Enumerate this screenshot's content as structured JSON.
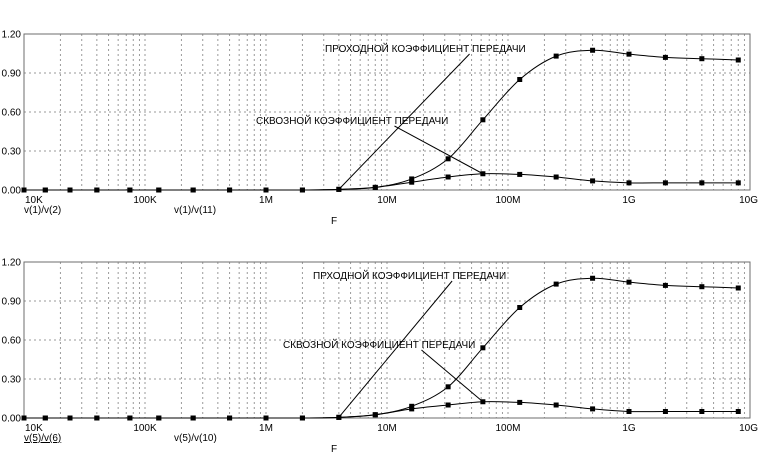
{
  "chart_data": [
    {
      "type": "line",
      "x_scale": "log",
      "xlim": [
        10000,
        10000000000
      ],
      "ylim": [
        0,
        1.2
      ],
      "grid": true,
      "xlabel": "F",
      "ylabel": "",
      "x_ticks": [
        {
          "value": 10000,
          "label": "10K"
        },
        {
          "value": 100000,
          "label": "100K"
        },
        {
          "value": 1000000,
          "label": "1M"
        },
        {
          "value": 10000000,
          "label": "10M"
        },
        {
          "value": 100000000,
          "label": "100M"
        },
        {
          "value": 1000000000,
          "label": "1G"
        },
        {
          "value": 10000000000,
          "label": "10G"
        }
      ],
      "y_ticks": [
        {
          "value": 0,
          "label": "0.00"
        },
        {
          "value": 0.3,
          "label": "0.30"
        },
        {
          "value": 0.6,
          "label": "0.60"
        },
        {
          "value": 0.9,
          "label": "0.90"
        },
        {
          "value": 1.2,
          "label": "1.20"
        }
      ],
      "legend": [
        "v(1)/v(2)",
        "v(1)/v(11)"
      ],
      "series": [
        {
          "name": "v(1)/v(2)",
          "annotation": "ПРОХОДНОЙ КОЭФФИЦИЕНТ ПЕРЕДАЧИ",
          "x": [
            10000,
            15000,
            24000,
            40000,
            75000,
            130000,
            250000,
            500000,
            1000000,
            2000000,
            4000000,
            8000000,
            16000000,
            32000000,
            62000000,
            125000000,
            250000000,
            500000000,
            1000000000,
            2000000000,
            4000000000,
            8000000000
          ],
          "values": [
            0.0,
            0.0,
            0.0,
            0.0,
            0.0,
            0.0,
            0.0,
            0.0,
            0.0,
            0.0,
            0.005,
            0.02,
            0.085,
            0.24,
            0.54,
            0.85,
            1.03,
            1.075,
            1.045,
            1.02,
            1.01,
            1.0
          ]
        },
        {
          "name": "v(1)/v(11)",
          "annotation": "СКВОЗНОЙ КОЭФФИЦИЕНТ ПЕРЕДАЧИ",
          "x": [
            10000,
            15000,
            24000,
            40000,
            75000,
            130000,
            250000,
            500000,
            1000000,
            2000000,
            4000000,
            8000000,
            16000000,
            32000000,
            62000000,
            125000000,
            250000000,
            500000000,
            1000000000,
            2000000000,
            4000000000,
            8000000000
          ],
          "values": [
            0.0,
            0.0,
            0.0,
            0.0,
            0.0,
            0.0,
            0.0,
            0.0,
            0.0,
            0.0,
            0.005,
            0.02,
            0.06,
            0.1,
            0.125,
            0.12,
            0.1,
            0.07,
            0.055,
            0.055,
            0.055,
            0.055
          ]
        }
      ]
    },
    {
      "type": "line",
      "x_scale": "log",
      "xlim": [
        10000,
        10000000000
      ],
      "ylim": [
        0,
        1.2
      ],
      "grid": true,
      "xlabel": "F",
      "ylabel": "",
      "x_ticks": [
        {
          "value": 10000,
          "label": "10K"
        },
        {
          "value": 100000,
          "label": "100K"
        },
        {
          "value": 1000000,
          "label": "1M"
        },
        {
          "value": 10000000,
          "label": "10M"
        },
        {
          "value": 100000000,
          "label": "100M"
        },
        {
          "value": 1000000000,
          "label": "1G"
        },
        {
          "value": 10000000000,
          "label": "10G"
        }
      ],
      "y_ticks": [
        {
          "value": 0,
          "label": "0.00"
        },
        {
          "value": 0.3,
          "label": "0.30"
        },
        {
          "value": 0.6,
          "label": "0.60"
        },
        {
          "value": 0.9,
          "label": "0.90"
        },
        {
          "value": 1.2,
          "label": "1.20"
        }
      ],
      "legend": [
        "v(5)/v(6)",
        "v(5)/v(10)"
      ],
      "series": [
        {
          "name": "v(5)/v(6)",
          "annotation": "ПРХОДНОЙ КОЭФФИЦИЕНТ ПЕРЕДАЧИ",
          "x": [
            10000,
            15000,
            24000,
            40000,
            75000,
            130000,
            250000,
            500000,
            1000000,
            2000000,
            4000000,
            8000000,
            16000000,
            32000000,
            62000000,
            125000000,
            250000000,
            500000000,
            1000000000,
            2000000000,
            4000000000,
            8000000000
          ],
          "values": [
            0.0,
            0.0,
            0.0,
            0.0,
            0.0,
            0.0,
            0.0,
            0.0,
            0.0,
            0.0,
            0.005,
            0.025,
            0.09,
            0.24,
            0.54,
            0.85,
            1.03,
            1.075,
            1.045,
            1.02,
            1.01,
            1.0
          ]
        },
        {
          "name": "v(5)/v(10)",
          "annotation": "СКВОЗНОЙ КОЭФФИЦИЕНТ ПЕРЕДАЧИ",
          "x": [
            10000,
            15000,
            24000,
            40000,
            75000,
            130000,
            250000,
            500000,
            1000000,
            2000000,
            4000000,
            8000000,
            16000000,
            32000000,
            62000000,
            125000000,
            250000000,
            500000000,
            1000000000,
            2000000000,
            4000000000,
            8000000000
          ],
          "values": [
            0.0,
            0.0,
            0.0,
            0.0,
            0.0,
            0.0,
            0.0,
            0.0,
            0.0,
            0.0,
            0.005,
            0.025,
            0.07,
            0.1,
            0.125,
            0.12,
            0.1,
            0.07,
            0.05,
            0.05,
            0.05,
            0.05
          ]
        }
      ]
    }
  ]
}
